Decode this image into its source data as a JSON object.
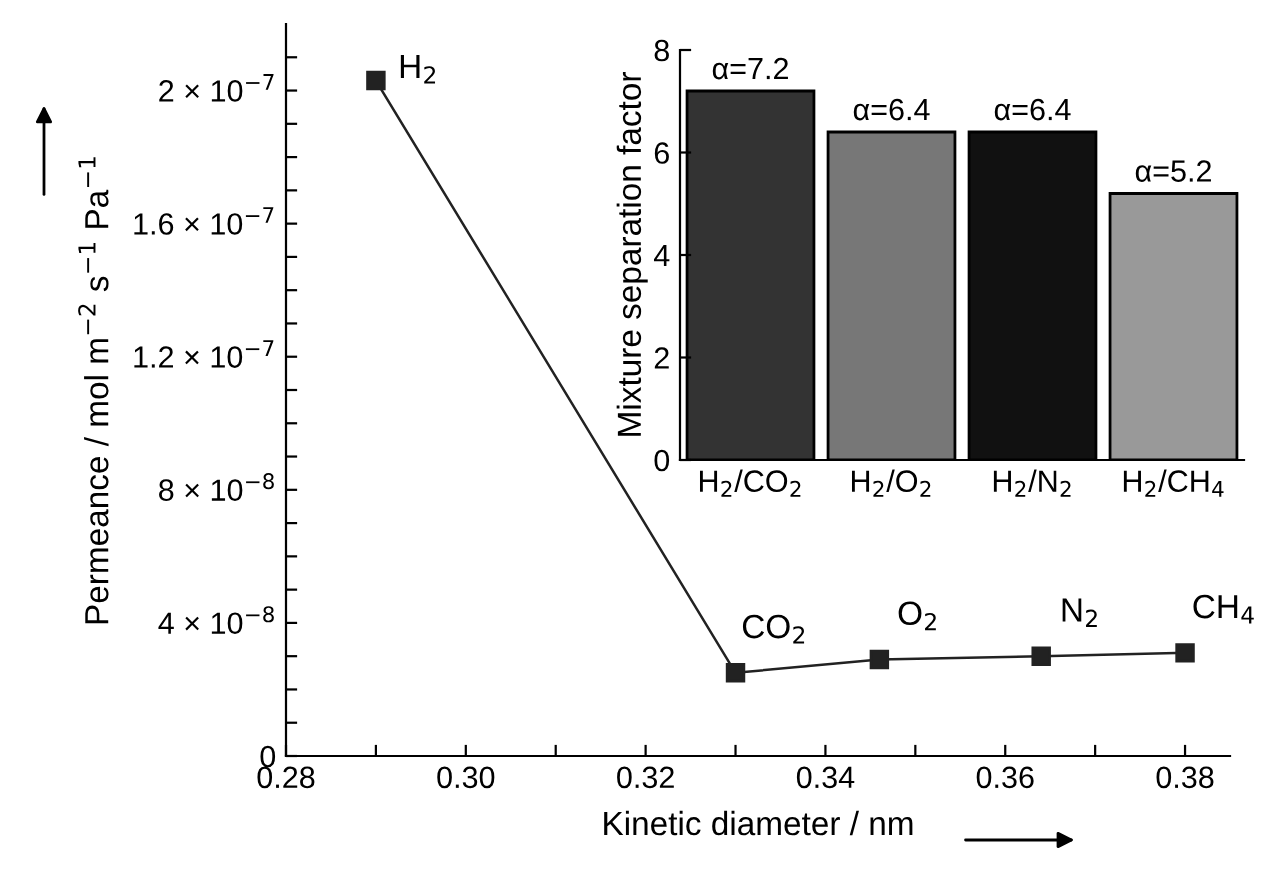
{
  "chart_data": [
    {
      "type": "line",
      "xlabel": "Kinetic diameter / nm",
      "ylabel": "Permeance / mol m$^{−2}$ s$^{−1}$ Pa$^{−1}$",
      "x": [
        0.29,
        0.33,
        0.346,
        0.364,
        0.38
      ],
      "series": [
        {
          "color": "#222222",
          "values": [
            2.03e-07,
            2.5e-08,
            2.9e-08,
            3e-08,
            3.1e-08
          ]
        }
      ],
      "marker": "square",
      "line_style": "solid",
      "grid": false,
      "legend": false,
      "xlim": [
        0.28,
        0.385
      ],
      "ylim": [
        0,
        2.2e-07
      ],
      "xticks": [
        0.28,
        {
          "value": 0.29,
          "label": null
        },
        {
          "value": 0.3,
          "label": "0.30"
        },
        {
          "value": 0.31,
          "label": null
        },
        0.32,
        {
          "value": 0.33,
          "label": null
        },
        0.34,
        {
          "value": 0.35,
          "label": null
        },
        0.36,
        {
          "value": 0.37,
          "label": null
        },
        0.38
      ],
      "yticks": [
        {
          "value": 0,
          "label": "0"
        },
        {
          "value": 1e-08,
          "label": null
        },
        {
          "value": 2e-08,
          "label": null
        },
        {
          "value": 3e-08,
          "label": null
        },
        {
          "value": 4e-08,
          "label": "4 × 10$^{−8}$"
        },
        {
          "value": 5e-08,
          "label": null
        },
        {
          "value": 6e-08,
          "label": null
        },
        {
          "value": 7e-08,
          "label": null
        },
        {
          "value": 8e-08,
          "label": "8 × 10$^{−8}$"
        },
        {
          "value": 9e-08,
          "label": null
        },
        {
          "value": 1e-07,
          "label": null
        },
        {
          "value": 1.1e-07,
          "label": null
        },
        {
          "value": 1.2e-07,
          "label": "1.2 × 10$^{−7}$"
        },
        {
          "value": 1.3e-07,
          "label": null
        },
        {
          "value": 1.4e-07,
          "label": null
        },
        {
          "value": 1.5e-07,
          "label": null
        },
        {
          "value": 1.6e-07,
          "label": "1.6 × 10$^{−7}$"
        },
        {
          "value": 1.7e-07,
          "label": null
        },
        {
          "value": 1.8e-07,
          "label": null
        },
        {
          "value": 1.9e-07,
          "label": null
        },
        {
          "value": 2e-07,
          "label": "2 × 10$^{−7}$"
        },
        {
          "value": 2.1e-07,
          "label": null
        }
      ],
      "annotations": [
        {
          "text": "H$_{2}$",
          "x": 0.29,
          "y": 2.03e-07
        },
        {
          "text": "CO$_{2}$",
          "x": 0.33,
          "y": 2.5e-08
        },
        {
          "text": "O$_{2}$",
          "x": 0.346,
          "y": 2.9e-08
        },
        {
          "text": "N$_{2}$",
          "x": 0.364,
          "y": 3e-08
        },
        {
          "text": "CH$_{4}$",
          "x": 0.38,
          "y": 3.1e-08
        }
      ]
    },
    {
      "type": "bar",
      "ylabel": "Mixture separation factor",
      "categories": [
        "H$_{2}$/CO$_{2}$",
        "H$_{2}$/O$_{2}$",
        "H$_{2}$/N$_{2}$",
        "H$_{2}$/CH$_{4}$"
      ],
      "values": [
        7.2,
        6.4,
        6.4,
        5.2
      ],
      "colors": [
        "#333333",
        "#777777",
        "#111111",
        "#999999"
      ],
      "value_labels": [
        "α=7.2",
        "α=6.4",
        "α=6.4",
        "α=5.2"
      ],
      "ylim": [
        0,
        8
      ],
      "yticks": [
        0,
        2,
        4,
        6,
        8
      ],
      "grid": false,
      "legend": false
    }
  ]
}
